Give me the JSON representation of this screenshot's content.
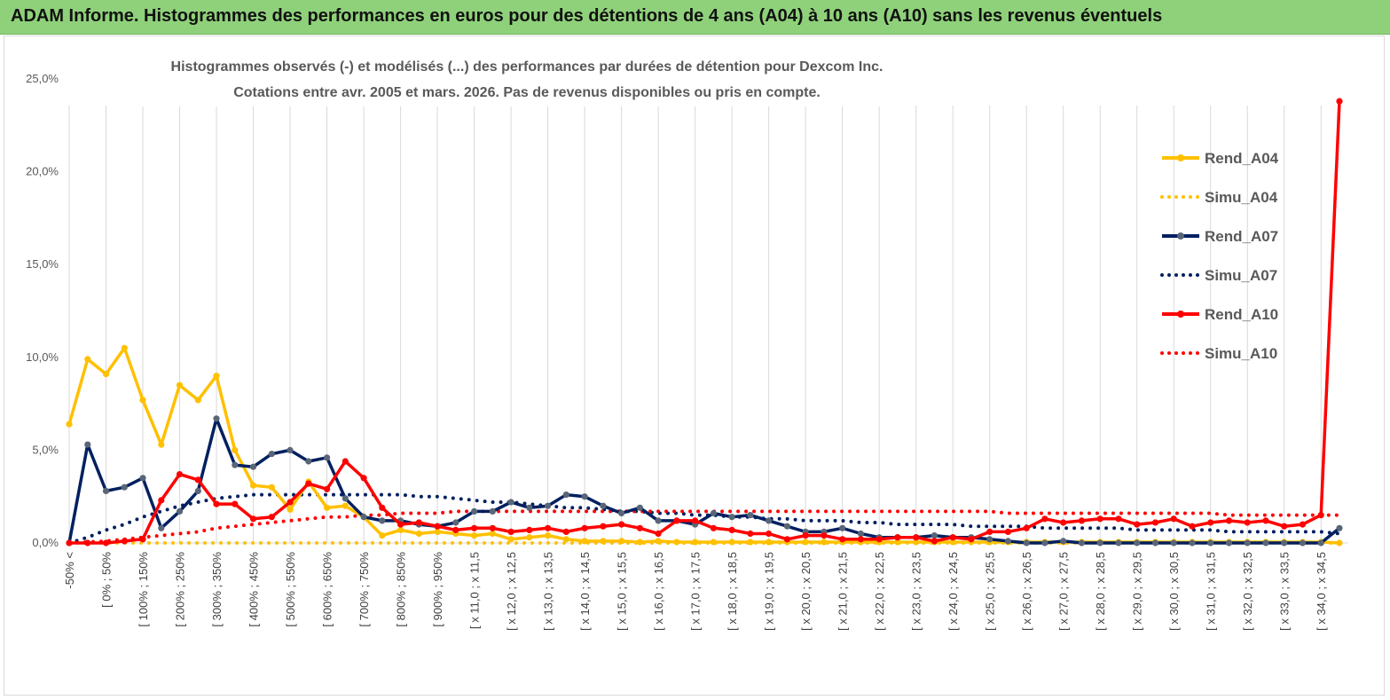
{
  "banner": {
    "title": "ADAM Informe. Histogrammes des performances en euros pour des détentions de 4 ans (A04) à 10 ans (A10) sans les revenus éventuels"
  },
  "chart_data": {
    "type": "line",
    "title": [
      "Histogrammes observés (-) et modélisés (...) des performances par durées de détention pour Dexcom Inc.",
      "Cotations entre avr. 2005 et mars. 2026.  Pas de revenus disponibles ou pris en compte."
    ],
    "xlabel": "",
    "ylabel": "",
    "ylim": [
      0,
      25
    ],
    "yticks": [
      "0,0%",
      "5,0%",
      "10,0%",
      "15,0%",
      "20,0%",
      "25,0%"
    ],
    "grid": "vertical",
    "legend_position": "right",
    "x_tick_labels": [
      "-50% <",
      "[ 0% ; 50%",
      "[ 100% ; 150%",
      "[ 200% ; 250%",
      "[ 300% ; 350%",
      "[ 400% ; 450%",
      "[ 500% ; 550%",
      "[ 600% ; 650%",
      "[ 700% ; 750%",
      "[ 800% ; 850%",
      "[ 900% ; 950%",
      "[ x 11,0 ; x 11,5",
      "[ x 12,0 ; x 12,5",
      "[ x 13,0 ; x 13,5",
      "[ x 14,0 ; x 14,5",
      "[ x 15,0 ; x 15,5",
      "[ x 16,0 ; x 16,5",
      "[ x 17,0 ; x 17,5",
      "[ x 18,0 ; x 18,5",
      "[ x 19,0 ; x 19,5",
      "[ x 20,0 ; x 20,5",
      "[ x 21,0 ; x 21,5",
      "[ x 22,0 ; x 22,5",
      "[ x 23,0 ; x 23,5",
      "[ x 24,0 ; x 24,5",
      "[ x 25,0 ; x 25,5",
      "[ x 26,0 ; x 26,5",
      "[ x 27,0 ; x 27,5",
      "[ x 28,0 ; x 28,5",
      "[ x 29,0 ; x 29,5",
      "[ x 30,0 ; x 30,5",
      "[ x 31,0 ; x 31,5",
      "[ x 32,0 ; x 32,5",
      "[ x 33,0 ; x 33,5",
      "[ x 34,0 ; x 34,5"
    ],
    "n_points": 70,
    "series": [
      {
        "name": "Rend_A04",
        "style": "solid",
        "color": "#FFC000",
        "values": [
          6.4,
          9.9,
          9.1,
          10.5,
          7.7,
          5.3,
          8.5,
          7.7,
          9.0,
          5.0,
          3.1,
          3.0,
          1.8,
          3.3,
          1.9,
          2.0,
          1.4,
          0.4,
          0.7,
          0.5,
          0.6,
          0.5,
          0.4,
          0.5,
          0.2,
          0.3,
          0.4,
          0.2,
          0.1,
          0.1,
          0.1,
          0.05,
          0.1,
          0.05,
          0.05,
          0.05,
          0.05,
          0.05,
          0.05,
          0.05,
          0.05,
          0.05,
          0.05,
          0.05,
          0.05,
          0.05,
          0.05,
          0.05,
          0.05,
          0.05,
          0.05,
          0.05,
          0.05,
          0.05,
          0.05,
          0.05,
          0.05,
          0.05,
          0.05,
          0.05,
          0.05,
          0.05,
          0.05,
          0.05,
          0.05,
          0.05,
          0.05,
          0.05,
          0.05,
          0.0
        ]
      },
      {
        "name": "Simu_A04",
        "style": "dotted",
        "color": "#FFC000",
        "values": [
          0.0,
          0.0,
          0.0,
          0.0,
          0.0,
          0.0,
          0.0,
          0.0,
          0.0,
          0.0,
          0.0,
          0.0,
          0.0,
          0.0,
          0.0,
          0.0,
          0.0,
          0.0,
          0.0,
          0.0,
          0.0,
          0.0,
          0.0,
          0.0,
          0.0,
          0.0,
          0.0,
          0.0,
          0.0,
          0.0,
          0.0,
          0.0,
          0.0,
          0.0,
          0.0,
          0.0,
          0.0,
          0.0,
          0.0,
          0.0,
          0.0,
          0.0,
          0.0,
          0.0,
          0.0,
          0.0,
          0.0,
          0.0,
          0.0,
          0.0,
          0.0,
          0.0,
          0.0,
          0.0,
          0.0,
          0.0,
          0.0,
          0.0,
          0.0,
          0.0,
          0.0,
          0.0,
          0.0,
          0.0,
          0.0,
          0.0,
          0.0,
          0.0,
          0.0,
          0.0
        ]
      },
      {
        "name": "Rend_A07",
        "style": "solid",
        "color": "#002060",
        "values": [
          0.0,
          5.3,
          2.8,
          3.0,
          3.5,
          0.8,
          1.7,
          2.8,
          6.7,
          4.2,
          4.1,
          4.8,
          5.0,
          4.4,
          4.6,
          2.4,
          1.4,
          1.2,
          1.2,
          1.0,
          0.9,
          1.1,
          1.7,
          1.7,
          2.2,
          1.9,
          2.0,
          2.6,
          2.5,
          2.0,
          1.6,
          1.9,
          1.2,
          1.2,
          1.0,
          1.6,
          1.4,
          1.5,
          1.2,
          0.9,
          0.6,
          0.6,
          0.8,
          0.5,
          0.3,
          0.3,
          0.3,
          0.4,
          0.3,
          0.3,
          0.2,
          0.1,
          0.0,
          0.0,
          0.1,
          0.0,
          0.0,
          0.0,
          0.0,
          0.0,
          0.0,
          0.0,
          0.0,
          0.0,
          0.0,
          0.0,
          0.0,
          0.0,
          0.0,
          0.8
        ]
      },
      {
        "name": "Simu_A07",
        "style": "dotted",
        "color": "#002060",
        "values": [
          0.0,
          0.3,
          0.7,
          1.0,
          1.4,
          1.7,
          2.0,
          2.2,
          2.4,
          2.5,
          2.6,
          2.6,
          2.6,
          2.6,
          2.6,
          2.6,
          2.6,
          2.6,
          2.6,
          2.5,
          2.5,
          2.4,
          2.3,
          2.2,
          2.2,
          2.1,
          2.0,
          1.9,
          1.9,
          1.8,
          1.7,
          1.7,
          1.6,
          1.6,
          1.5,
          1.5,
          1.4,
          1.4,
          1.3,
          1.3,
          1.2,
          1.2,
          1.2,
          1.1,
          1.1,
          1.0,
          1.0,
          1.0,
          1.0,
          0.9,
          0.9,
          0.9,
          0.9,
          0.8,
          0.8,
          0.8,
          0.8,
          0.8,
          0.7,
          0.7,
          0.7,
          0.7,
          0.7,
          0.6,
          0.6,
          0.6,
          0.6,
          0.6,
          0.6,
          0.5
        ]
      },
      {
        "name": "Rend_A10",
        "style": "solid",
        "color": "#FF0000",
        "values": [
          0.0,
          0.0,
          0.0,
          0.1,
          0.2,
          2.3,
          3.7,
          3.4,
          2.1,
          2.1,
          1.3,
          1.4,
          2.2,
          3.2,
          2.9,
          4.4,
          3.5,
          1.9,
          1.0,
          1.1,
          0.9,
          0.7,
          0.8,
          0.8,
          0.6,
          0.7,
          0.8,
          0.6,
          0.8,
          0.9,
          1.0,
          0.8,
          0.5,
          1.2,
          1.2,
          0.8,
          0.7,
          0.5,
          0.5,
          0.2,
          0.4,
          0.4,
          0.2,
          0.2,
          0.2,
          0.3,
          0.3,
          0.1,
          0.3,
          0.2,
          0.6,
          0.6,
          0.8,
          1.3,
          1.1,
          1.2,
          1.3,
          1.3,
          1.0,
          1.1,
          1.3,
          0.9,
          1.1,
          1.2,
          1.1,
          1.2,
          0.9,
          1.0,
          1.5,
          23.8
        ]
      },
      {
        "name": "Simu_A10",
        "style": "dotted",
        "color": "#FF0000",
        "values": [
          0.0,
          0.05,
          0.1,
          0.2,
          0.3,
          0.4,
          0.5,
          0.6,
          0.8,
          0.9,
          1.0,
          1.1,
          1.2,
          1.3,
          1.4,
          1.4,
          1.5,
          1.5,
          1.6,
          1.6,
          1.6,
          1.7,
          1.7,
          1.7,
          1.7,
          1.7,
          1.7,
          1.7,
          1.7,
          1.7,
          1.7,
          1.7,
          1.7,
          1.7,
          1.7,
          1.7,
          1.7,
          1.7,
          1.7,
          1.7,
          1.7,
          1.7,
          1.7,
          1.7,
          1.7,
          1.7,
          1.7,
          1.7,
          1.7,
          1.7,
          1.7,
          1.6,
          1.6,
          1.6,
          1.6,
          1.6,
          1.6,
          1.6,
          1.6,
          1.6,
          1.6,
          1.6,
          1.6,
          1.5,
          1.5,
          1.5,
          1.5,
          1.5,
          1.5,
          1.5
        ]
      }
    ]
  }
}
